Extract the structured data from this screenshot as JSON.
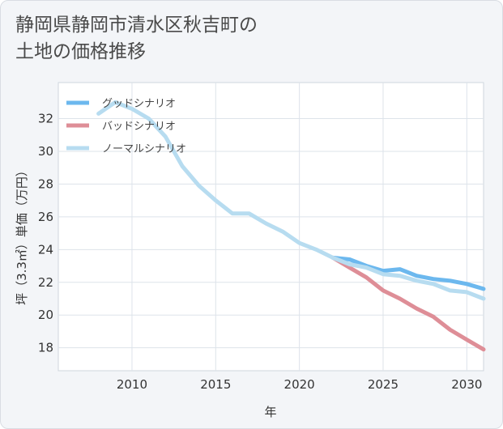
{
  "title_line1": "静岡県静岡市清水区秋吉町の",
  "title_line2": "土地の価格推移",
  "chart_data": {
    "type": "line",
    "title": "静岡県静岡市清水区秋吉町の土地の価格推移",
    "xlabel": "年",
    "ylabel": "坪（3.3㎡）単価（万円）",
    "xlim": [
      2005.6,
      2031.0
    ],
    "ylim": [
      16.6,
      34.2
    ],
    "x_ticks": [
      2010,
      2015,
      2020,
      2025,
      2030
    ],
    "y_ticks": [
      18,
      20,
      22,
      24,
      26,
      28,
      30,
      32
    ],
    "grid": true,
    "legend_position": "top-left",
    "series": [
      {
        "name": "グッドシナリオ",
        "color": "#6cb8ee",
        "x": [
          2022,
          2023,
          2024,
          2025,
          2026,
          2027,
          2028,
          2029,
          2030,
          2031
        ],
        "y": [
          23.5,
          23.4,
          23.0,
          22.7,
          22.8,
          22.4,
          22.2,
          22.1,
          21.9,
          21.6
        ]
      },
      {
        "name": "バッドシナリオ",
        "color": "#de8e97",
        "x": [
          2022,
          2023,
          2024,
          2025,
          2026,
          2027,
          2028,
          2029,
          2030,
          2031
        ],
        "y": [
          23.5,
          22.9,
          22.3,
          21.5,
          21.0,
          20.4,
          19.9,
          19.1,
          18.5,
          17.9
        ]
      },
      {
        "name": "ノーマルシナリオ",
        "color": "#b7dcf0",
        "x": [
          2008,
          2009,
          2010,
          2011,
          2012,
          2013,
          2014,
          2015,
          2016,
          2017,
          2018,
          2019,
          2020,
          2021,
          2022,
          2023,
          2024,
          2025,
          2026,
          2027,
          2028,
          2029,
          2030,
          2031
        ],
        "y": [
          32.3,
          33.0,
          32.6,
          32.0,
          30.9,
          29.1,
          27.9,
          27.0,
          26.2,
          26.2,
          25.6,
          25.1,
          24.4,
          24.0,
          23.5,
          23.1,
          22.9,
          22.5,
          22.4,
          22.1,
          21.9,
          21.5,
          21.4,
          21.0
        ]
      }
    ]
  }
}
